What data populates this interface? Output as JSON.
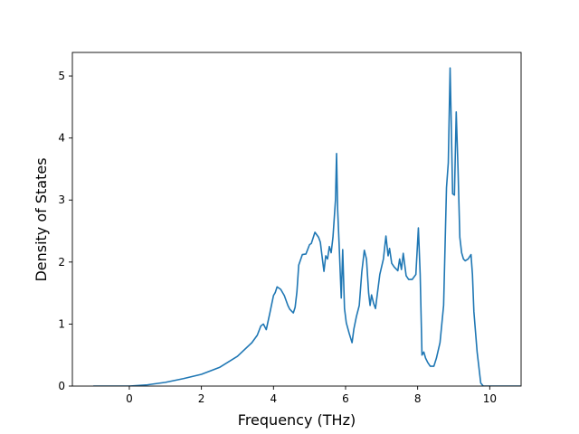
{
  "chart_data": {
    "type": "line",
    "xlabel": "Frequency (THz)",
    "ylabel": "Density of States",
    "xlim": [
      -1.58,
      10.87
    ],
    "ylim": [
      0,
      5.38
    ],
    "xticks": [
      0,
      2,
      4,
      6,
      8,
      10
    ],
    "yticks": [
      0,
      1,
      2,
      3,
      4,
      5
    ],
    "grid": false,
    "line_color": "#1f77b4",
    "series": [
      {
        "x": [
          -1.0,
          0.0,
          0.5,
          1.0,
          1.5,
          2.0,
          2.5,
          3.0,
          3.4,
          3.55,
          3.65,
          3.72,
          3.8,
          3.9,
          3.95,
          4.0,
          4.05,
          4.1,
          4.2,
          4.3,
          4.4,
          4.45,
          4.55,
          4.6,
          4.65,
          4.7,
          4.8,
          4.9,
          5.0,
          5.05,
          5.15,
          5.25,
          5.3,
          5.35,
          5.4,
          5.45,
          5.5,
          5.55,
          5.6,
          5.65,
          5.72,
          5.75,
          5.78,
          5.82,
          5.88,
          5.92,
          5.97,
          6.02,
          6.1,
          6.18,
          6.23,
          6.3,
          6.38,
          6.45,
          6.52,
          6.58,
          6.64,
          6.68,
          6.72,
          6.78,
          6.83,
          6.88,
          6.95,
          7.05,
          7.12,
          7.18,
          7.22,
          7.28,
          7.35,
          7.45,
          7.5,
          7.55,
          7.6,
          7.68,
          7.75,
          7.85,
          7.95,
          8.02,
          8.07,
          8.12,
          8.17,
          8.22,
          8.28,
          8.35,
          8.45,
          8.52,
          8.62,
          8.72,
          8.8,
          8.85,
          8.9,
          8.93,
          8.97,
          9.02,
          9.07,
          9.12,
          9.17,
          9.22,
          9.27,
          9.32,
          9.4,
          9.48,
          9.52,
          9.56,
          9.65,
          9.75,
          9.82,
          9.87,
          9.93,
          10.3,
          10.85
        ],
        "y": [
          0,
          0,
          0.02,
          0.06,
          0.12,
          0.19,
          0.3,
          0.48,
          0.7,
          0.82,
          0.97,
          1.0,
          0.91,
          1.18,
          1.32,
          1.46,
          1.51,
          1.6,
          1.56,
          1.46,
          1.3,
          1.24,
          1.18,
          1.27,
          1.52,
          1.95,
          2.12,
          2.13,
          2.28,
          2.3,
          2.48,
          2.4,
          2.32,
          2.08,
          1.85,
          2.1,
          2.05,
          2.25,
          2.15,
          2.4,
          3.0,
          3.75,
          2.85,
          2.3,
          1.42,
          2.2,
          1.25,
          1.02,
          0.85,
          0.7,
          0.92,
          1.12,
          1.3,
          1.84,
          2.19,
          2.05,
          1.5,
          1.3,
          1.47,
          1.33,
          1.25,
          1.48,
          1.8,
          2.05,
          2.42,
          2.1,
          2.22,
          1.98,
          1.92,
          1.86,
          2.05,
          1.88,
          2.14,
          1.78,
          1.72,
          1.72,
          1.8,
          2.55,
          1.8,
          0.5,
          0.55,
          0.45,
          0.38,
          0.32,
          0.32,
          0.45,
          0.7,
          1.3,
          3.2,
          3.6,
          5.13,
          4.3,
          3.1,
          3.08,
          4.42,
          3.5,
          2.4,
          2.15,
          2.05,
          2.02,
          2.05,
          2.12,
          1.8,
          1.2,
          0.55,
          0.05,
          0,
          0,
          0,
          0,
          0
        ]
      }
    ]
  }
}
